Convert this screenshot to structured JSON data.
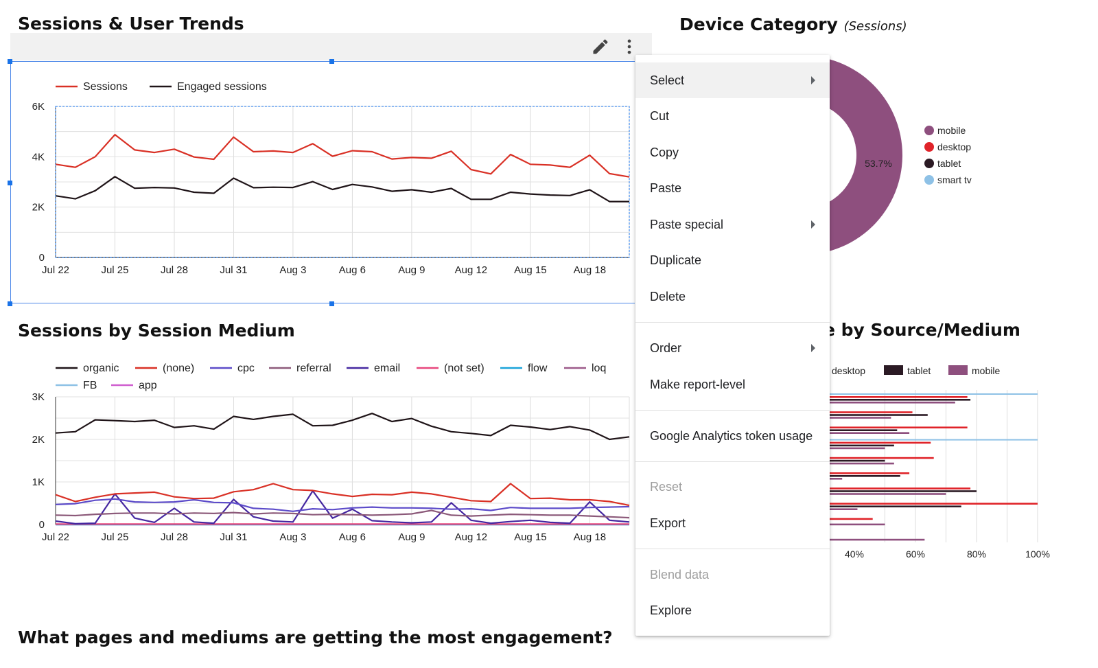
{
  "sessions_trends": {
    "title": "Sessions & User Trends",
    "chart_data": {
      "type": "line",
      "x": [
        "Jul 22",
        "Jul 23",
        "Jul 24",
        "Jul 25",
        "Jul 26",
        "Jul 27",
        "Jul 28",
        "Jul 29",
        "Jul 30",
        "Jul 31",
        "Aug 1",
        "Aug 2",
        "Aug 3",
        "Aug 4",
        "Aug 5",
        "Aug 6",
        "Aug 7",
        "Aug 8",
        "Aug 9",
        "Aug 10",
        "Aug 11",
        "Aug 12",
        "Aug 13",
        "Aug 14",
        "Aug 15",
        "Aug 16",
        "Aug 17",
        "Aug 18",
        "Aug 19",
        "Aug 20"
      ],
      "x_tick_labels": [
        "Jul 22",
        "Jul 25",
        "Jul 28",
        "Jul 31",
        "Aug 3",
        "Aug 6",
        "Aug 9",
        "Aug 12",
        "Aug 15",
        "Aug 18"
      ],
      "y_tick_labels": [
        "0",
        "2K",
        "4K",
        "6K"
      ],
      "ylim": [
        0,
        6000
      ],
      "grid": true,
      "legend_position": "top-left",
      "series": [
        {
          "name": "Sessions",
          "color": "#d93025",
          "values": [
            3700,
            3580,
            4000,
            4880,
            4270,
            4170,
            4300,
            3990,
            3900,
            4780,
            4200,
            4230,
            4170,
            4520,
            4020,
            4240,
            4200,
            3910,
            3970,
            3940,
            4220,
            3490,
            3320,
            4090,
            3700,
            3670,
            3580,
            4060,
            3330,
            3200
          ]
        },
        {
          "name": "Engaged sessions",
          "color": "#1f1418",
          "values": [
            2450,
            2330,
            2650,
            3210,
            2750,
            2780,
            2760,
            2590,
            2550,
            3150,
            2770,
            2790,
            2780,
            3010,
            2700,
            2900,
            2800,
            2630,
            2690,
            2590,
            2740,
            2310,
            2310,
            2590,
            2520,
            2480,
            2460,
            2690,
            2220,
            2220
          ]
        }
      ]
    }
  },
  "toolbar": {
    "edit_icon": "pencil-icon",
    "more_icon": "more-vert-icon"
  },
  "device_category": {
    "title": "Device Category",
    "subtitle": "(Sessions)",
    "chart_data": {
      "type": "pie",
      "slices": [
        {
          "name": "mobile",
          "color": "#8e4f7e",
          "percent": 53.7,
          "label": "53.7%"
        },
        {
          "name": "desktop",
          "color": "#e02329",
          "percent": null
        },
        {
          "name": "tablet",
          "color": "#2b1a24",
          "percent": null
        },
        {
          "name": "smart tv",
          "color": "#8ec1e6",
          "percent": null
        }
      ]
    }
  },
  "session_medium": {
    "title": "Sessions by Session Medium",
    "chart_data": {
      "type": "line",
      "x": [
        "Jul 22",
        "Jul 23",
        "Jul 24",
        "Jul 25",
        "Jul 26",
        "Jul 27",
        "Jul 28",
        "Jul 29",
        "Jul 30",
        "Jul 31",
        "Aug 1",
        "Aug 2",
        "Aug 3",
        "Aug 4",
        "Aug 5",
        "Aug 6",
        "Aug 7",
        "Aug 8",
        "Aug 9",
        "Aug 10",
        "Aug 11",
        "Aug 12",
        "Aug 13",
        "Aug 14",
        "Aug 15",
        "Aug 16",
        "Aug 17",
        "Aug 18",
        "Aug 19",
        "Aug 20"
      ],
      "x_tick_labels": [
        "Jul 22",
        "Jul 25",
        "Jul 28",
        "Jul 31",
        "Aug 3",
        "Aug 6",
        "Aug 9",
        "Aug 12",
        "Aug 15",
        "Aug 18"
      ],
      "y_tick_labels": [
        "0",
        "1K",
        "2K",
        "3K"
      ],
      "ylim": [
        0,
        3000
      ],
      "grid": true,
      "legend_position": "top",
      "series": [
        {
          "name": "organic",
          "color": "#1f1418",
          "values": [
            2150,
            2180,
            2460,
            2440,
            2420,
            2450,
            2280,
            2320,
            2240,
            2540,
            2470,
            2540,
            2590,
            2320,
            2330,
            2450,
            2610,
            2420,
            2490,
            2310,
            2180,
            2140,
            2090,
            2330,
            2290,
            2230,
            2300,
            2220,
            2000,
            2060
          ]
        },
        {
          "name": "(none)",
          "color": "#d93025",
          "values": [
            700,
            540,
            640,
            720,
            740,
            760,
            650,
            610,
            620,
            770,
            820,
            960,
            820,
            800,
            720,
            660,
            710,
            700,
            760,
            720,
            640,
            560,
            540,
            960,
            610,
            620,
            580,
            580,
            540,
            450
          ]
        },
        {
          "name": "cpc",
          "color": "#5c4bc9",
          "values": [
            470,
            490,
            570,
            600,
            530,
            520,
            530,
            580,
            520,
            510,
            380,
            360,
            310,
            370,
            350,
            390,
            410,
            390,
            390,
            380,
            360,
            370,
            330,
            400,
            380,
            380,
            380,
            400,
            410,
            420
          ]
        },
        {
          "name": "referral",
          "color": "#8c5a7a",
          "values": [
            220,
            210,
            240,
            260,
            270,
            270,
            250,
            270,
            260,
            280,
            250,
            270,
            260,
            230,
            240,
            230,
            220,
            230,
            250,
            330,
            220,
            200,
            220,
            240,
            230,
            220,
            220,
            200,
            180,
            160
          ]
        },
        {
          "name": "email",
          "color": "#4527a0",
          "values": [
            80,
            20,
            30,
            720,
            150,
            50,
            380,
            60,
            30,
            590,
            180,
            80,
            60,
            790,
            150,
            360,
            90,
            60,
            40,
            60,
            510,
            100,
            30,
            70,
            100,
            50,
            30,
            530,
            100,
            60
          ]
        },
        {
          "name": "(not set)",
          "color": "#e8467c",
          "values": [
            10,
            10,
            10,
            10,
            10,
            10,
            10,
            10,
            10,
            10,
            10,
            10,
            10,
            10,
            10,
            10,
            10,
            10,
            10,
            10,
            10,
            10,
            10,
            10,
            10,
            10,
            10,
            10,
            10,
            10
          ]
        },
        {
          "name": "flow",
          "color": "#1aa3d9",
          "values": [
            0,
            0,
            0,
            0,
            0,
            0,
            0,
            0,
            0,
            0,
            0,
            0,
            0,
            0,
            0,
            0,
            0,
            0,
            0,
            0,
            0,
            0,
            0,
            0,
            0,
            0,
            0,
            0,
            0,
            0
          ]
        },
        {
          "name": "loq",
          "color": "#9c5a8a",
          "values": [
            0,
            0,
            0,
            0,
            0,
            0,
            0,
            0,
            0,
            0,
            0,
            0,
            0,
            0,
            0,
            0,
            0,
            0,
            0,
            0,
            0,
            0,
            0,
            0,
            0,
            0,
            0,
            0,
            0,
            0
          ]
        },
        {
          "name": "FB",
          "color": "#8ec1e6",
          "values": [
            0,
            0,
            0,
            0,
            0,
            0,
            0,
            0,
            0,
            0,
            0,
            0,
            0,
            0,
            0,
            0,
            0,
            0,
            0,
            0,
            0,
            0,
            0,
            0,
            0,
            0,
            0,
            0,
            0,
            0
          ]
        },
        {
          "name": "app",
          "color": "#cf5fd0",
          "values": [
            0,
            0,
            0,
            0,
            0,
            0,
            0,
            0,
            0,
            0,
            0,
            0,
            0,
            0,
            0,
            0,
            0,
            0,
            0,
            0,
            0,
            0,
            0,
            0,
            0,
            0,
            0,
            0,
            0,
            0
          ]
        }
      ]
    }
  },
  "source_medium": {
    "title_visible": "e by Source/Medium",
    "chart_data": {
      "type": "bar",
      "orientation": "horizontal",
      "x_tick_labels": [
        "40%",
        "60%",
        "80%",
        "100%"
      ],
      "xlim": [
        0,
        100
      ],
      "legend_position": "top",
      "legend": [
        {
          "name": "desktop",
          "color": "#e02329"
        },
        {
          "name": "tablet",
          "color": "#2b1a24"
        },
        {
          "name": "mobile",
          "color": "#8e4f7e"
        }
      ],
      "rows": [
        {
          "smart_tv": 100,
          "desktop": 77,
          "tablet": 78,
          "mobile": 73
        },
        {
          "desktop": 59,
          "tablet": 64,
          "mobile": 52
        },
        {
          "desktop": 77,
          "tablet": 54,
          "mobile": 58
        },
        {
          "smart_tv": 100,
          "desktop": 65,
          "tablet": 53,
          "mobile": 50
        },
        {
          "desktop": 66,
          "tablet": 50,
          "mobile": 53
        },
        {
          "desktop": 58,
          "tablet": 55,
          "mobile": 36
        },
        {
          "desktop": 78,
          "tablet": 80,
          "mobile": 70
        },
        {
          "desktop": 100,
          "tablet": 75,
          "mobile": 41
        },
        {
          "desktop": 46,
          "tablet": null,
          "mobile": 50
        },
        {
          "desktop": null,
          "tablet": null,
          "mobile": 63
        }
      ]
    }
  },
  "engagement_title": "What pages and mediums are getting the most engagement?",
  "context_menu": {
    "items": [
      {
        "label": "Select",
        "submenu": true,
        "disabled": false
      },
      {
        "label": "Cut",
        "submenu": false,
        "disabled": false
      },
      {
        "label": "Copy",
        "submenu": false,
        "disabled": false
      },
      {
        "label": "Paste",
        "submenu": false,
        "disabled": false
      },
      {
        "label": "Paste special",
        "submenu": true,
        "disabled": false
      },
      {
        "label": "Duplicate",
        "submenu": false,
        "disabled": false
      },
      {
        "label": "Delete",
        "submenu": false,
        "disabled": false
      },
      {
        "label": "Order",
        "submenu": true,
        "disabled": false
      },
      {
        "label": "Make report-level",
        "submenu": false,
        "disabled": false
      },
      {
        "label": "Google Analytics token usage",
        "submenu": false,
        "disabled": false
      },
      {
        "label": "Reset",
        "submenu": false,
        "disabled": true
      },
      {
        "label": "Export",
        "submenu": false,
        "disabled": false
      },
      {
        "label": "Blend data",
        "submenu": false,
        "disabled": true
      },
      {
        "label": "Explore",
        "submenu": false,
        "disabled": false
      }
    ]
  }
}
